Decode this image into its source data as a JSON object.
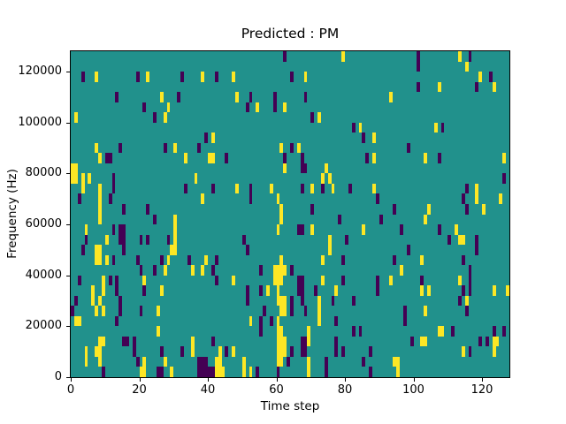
{
  "chart_data": {
    "type": "heatmap",
    "title": "Predicted : PM",
    "xlabel": "Time step",
    "ylabel": "Frequency (Hz)",
    "x_ticks": [
      0,
      20,
      40,
      60,
      80,
      100,
      120
    ],
    "y_ticks": [
      0,
      20000,
      40000,
      60000,
      80000,
      100000,
      120000
    ],
    "x_range": [
      0,
      128
    ],
    "y_range": [
      0,
      128000
    ],
    "grid_cols": 128,
    "grid_rows": 32,
    "row_height_hz": 4000,
    "legend": "none",
    "grid": "off",
    "colors": {
      "mid_background": "#21918c",
      "low": "#440154",
      "high": "#fde725",
      "spine": "#000000",
      "figure_background": "#ffffff"
    },
    "cells_low": [
      [
        62,
        31
      ],
      [
        101,
        31
      ],
      [
        116,
        31
      ],
      [
        101,
        30
      ],
      [
        3,
        29
      ],
      [
        19,
        29
      ],
      [
        32,
        29
      ],
      [
        42,
        29
      ],
      [
        64,
        29
      ],
      [
        122,
        29
      ],
      [
        101,
        28
      ],
      [
        118,
        28
      ],
      [
        13,
        27
      ],
      [
        31,
        27
      ],
      [
        52,
        27
      ],
      [
        59,
        27
      ],
      [
        68,
        27
      ],
      [
        21,
        26
      ],
      [
        51,
        26
      ],
      [
        59,
        26
      ],
      [
        24,
        25
      ],
      [
        70,
        25
      ],
      [
        39,
        23
      ],
      [
        82,
        24
      ],
      [
        108,
        24
      ],
      [
        85,
        23
      ],
      [
        14,
        22
      ],
      [
        27,
        22
      ],
      [
        37,
        22
      ],
      [
        64,
        22
      ],
      [
        98,
        22
      ],
      [
        10,
        21
      ],
      [
        11,
        21
      ],
      [
        45,
        21
      ],
      [
        62,
        21
      ],
      [
        67,
        21
      ],
      [
        86,
        21
      ],
      [
        107,
        21
      ],
      [
        67,
        20
      ],
      [
        68,
        20
      ],
      [
        12,
        19
      ],
      [
        126,
        19
      ],
      [
        12,
        18
      ],
      [
        33,
        18
      ],
      [
        41,
        18
      ],
      [
        52,
        18
      ],
      [
        67,
        18
      ],
      [
        73,
        18
      ],
      [
        81,
        18
      ],
      [
        115,
        18
      ],
      [
        2,
        17
      ],
      [
        11,
        17
      ],
      [
        52,
        17
      ],
      [
        89,
        17
      ],
      [
        114,
        17
      ],
      [
        15,
        16
      ],
      [
        22,
        16
      ],
      [
        70,
        16
      ],
      [
        94,
        16
      ],
      [
        115,
        16
      ],
      [
        24,
        15
      ],
      [
        78,
        15
      ],
      [
        90,
        15
      ],
      [
        12,
        14
      ],
      [
        14,
        14
      ],
      [
        15,
        14
      ],
      [
        66,
        14
      ],
      [
        67,
        14
      ],
      [
        96,
        14
      ],
      [
        107,
        14
      ],
      [
        4,
        13
      ],
      [
        14,
        13
      ],
      [
        15,
        13
      ],
      [
        20,
        13
      ],
      [
        22,
        13
      ],
      [
        28,
        13
      ],
      [
        50,
        13
      ],
      [
        80,
        13
      ],
      [
        110,
        13
      ],
      [
        118,
        13
      ],
      [
        3,
        12
      ],
      [
        15,
        12
      ],
      [
        51,
        12
      ],
      [
        98,
        12
      ],
      [
        118,
        12
      ],
      [
        12,
        11
      ],
      [
        19,
        11
      ],
      [
        26,
        11
      ],
      [
        34,
        11
      ],
      [
        42,
        11
      ],
      [
        79,
        11
      ],
      [
        94,
        11
      ],
      [
        114,
        11
      ],
      [
        20,
        10
      ],
      [
        24,
        10
      ],
      [
        41,
        10
      ],
      [
        55,
        10
      ],
      [
        64,
        10
      ],
      [
        116,
        10
      ],
      [
        2,
        9
      ],
      [
        11,
        9
      ],
      [
        13,
        9
      ],
      [
        42,
        9
      ],
      [
        66,
        9
      ],
      [
        67,
        9
      ],
      [
        79,
        9
      ],
      [
        89,
        9
      ],
      [
        102,
        9
      ],
      [
        116,
        9
      ],
      [
        13,
        8
      ],
      [
        21,
        8
      ],
      [
        51,
        8
      ],
      [
        55,
        8
      ],
      [
        66,
        8
      ],
      [
        67,
        8
      ],
      [
        71,
        8
      ],
      [
        89,
        8
      ],
      [
        114,
        8
      ],
      [
        116,
        8
      ],
      [
        1,
        7
      ],
      [
        14,
        7
      ],
      [
        51,
        7
      ],
      [
        64,
        7
      ],
      [
        67,
        7
      ],
      [
        76,
        7
      ],
      [
        82,
        7
      ],
      [
        113,
        7
      ],
      [
        0,
        6
      ],
      [
        14,
        6
      ],
      [
        20,
        6
      ],
      [
        56,
        6
      ],
      [
        64,
        6
      ],
      [
        68,
        6
      ],
      [
        97,
        6
      ],
      [
        115,
        6
      ],
      [
        13,
        5
      ],
      [
        55,
        5
      ],
      [
        58,
        5
      ],
      [
        77,
        5
      ],
      [
        97,
        5
      ],
      [
        55,
        4
      ],
      [
        82,
        4
      ],
      [
        84,
        4
      ],
      [
        111,
        4
      ],
      [
        123,
        4
      ],
      [
        126,
        4
      ],
      [
        15,
        3
      ],
      [
        16,
        3
      ],
      [
        18,
        3
      ],
      [
        41,
        3
      ],
      [
        67,
        3
      ],
      [
        68,
        3
      ],
      [
        77,
        3
      ],
      [
        99,
        3
      ],
      [
        119,
        3
      ],
      [
        121,
        3
      ],
      [
        18,
        2
      ],
      [
        26,
        2
      ],
      [
        32,
        2
      ],
      [
        45,
        2
      ],
      [
        64,
        2
      ],
      [
        67,
        2
      ],
      [
        68,
        2
      ],
      [
        77,
        2
      ],
      [
        79,
        2
      ],
      [
        87,
        2
      ],
      [
        116,
        2
      ],
      [
        19,
        1
      ],
      [
        37,
        1
      ],
      [
        38,
        1
      ],
      [
        39,
        1
      ],
      [
        63,
        1
      ],
      [
        74,
        1
      ],
      [
        85,
        1
      ],
      [
        9,
        0
      ],
      [
        25,
        0
      ],
      [
        26,
        0
      ],
      [
        37,
        0
      ],
      [
        38,
        0
      ],
      [
        39,
        0
      ],
      [
        40,
        0
      ],
      [
        41,
        0
      ],
      [
        54,
        0
      ],
      [
        60,
        0
      ],
      [
        74,
        0
      ],
      [
        87,
        0
      ]
    ],
    "cells_high": [
      [
        79,
        31
      ],
      [
        113,
        31
      ],
      [
        115,
        30
      ],
      [
        7,
        29
      ],
      [
        22,
        29
      ],
      [
        38,
        29
      ],
      [
        47,
        29
      ],
      [
        68,
        29
      ],
      [
        119,
        29
      ],
      [
        107,
        28
      ],
      [
        123,
        28
      ],
      [
        26,
        27
      ],
      [
        48,
        27
      ],
      [
        93,
        27
      ],
      [
        28,
        26
      ],
      [
        54,
        26
      ],
      [
        62,
        26
      ],
      [
        1,
        25
      ],
      [
        27,
        25
      ],
      [
        72,
        25
      ],
      [
        84,
        24
      ],
      [
        106,
        24
      ],
      [
        41,
        23
      ],
      [
        88,
        23
      ],
      [
        7,
        22
      ],
      [
        30,
        22
      ],
      [
        61,
        22
      ],
      [
        66,
        22
      ],
      [
        8,
        21
      ],
      [
        33,
        21
      ],
      [
        40,
        21
      ],
      [
        41,
        21
      ],
      [
        88,
        21
      ],
      [
        103,
        21
      ],
      [
        126,
        21
      ],
      [
        0,
        20
      ],
      [
        1,
        20
      ],
      [
        62,
        20
      ],
      [
        74,
        20
      ],
      [
        0,
        19
      ],
      [
        1,
        19
      ],
      [
        3,
        19
      ],
      [
        5,
        19
      ],
      [
        36,
        19
      ],
      [
        73,
        19
      ],
      [
        75,
        19
      ],
      [
        3,
        18
      ],
      [
        8,
        18
      ],
      [
        48,
        18
      ],
      [
        58,
        18
      ],
      [
        70,
        18
      ],
      [
        76,
        18
      ],
      [
        88,
        18
      ],
      [
        118,
        18
      ],
      [
        8,
        17
      ],
      [
        38,
        17
      ],
      [
        60,
        17
      ],
      [
        118,
        17
      ],
      [
        125,
        17
      ],
      [
        8,
        16
      ],
      [
        61,
        16
      ],
      [
        104,
        16
      ],
      [
        120,
        16
      ],
      [
        8,
        15
      ],
      [
        30,
        15
      ],
      [
        61,
        15
      ],
      [
        103,
        15
      ],
      [
        4,
        14
      ],
      [
        30,
        14
      ],
      [
        60,
        14
      ],
      [
        70,
        14
      ],
      [
        85,
        14
      ],
      [
        112,
        14
      ],
      [
        10,
        13
      ],
      [
        30,
        13
      ],
      [
        75,
        13
      ],
      [
        113,
        13
      ],
      [
        114,
        13
      ],
      [
        7,
        12
      ],
      [
        8,
        12
      ],
      [
        29,
        12
      ],
      [
        30,
        12
      ],
      [
        75,
        12
      ],
      [
        7,
        11
      ],
      [
        8,
        11
      ],
      [
        10,
        11
      ],
      [
        28,
        11
      ],
      [
        39,
        11
      ],
      [
        61,
        11
      ],
      [
        73,
        11
      ],
      [
        102,
        11
      ],
      [
        27,
        10
      ],
      [
        35,
        10
      ],
      [
        38,
        10
      ],
      [
        59,
        10
      ],
      [
        60,
        10
      ],
      [
        61,
        10
      ],
      [
        62,
        10
      ],
      [
        96,
        10
      ],
      [
        9,
        9
      ],
      [
        21,
        9
      ],
      [
        47,
        9
      ],
      [
        59,
        9
      ],
      [
        60,
        9
      ],
      [
        61,
        9
      ],
      [
        73,
        9
      ],
      [
        93,
        9
      ],
      [
        113,
        9
      ],
      [
        6,
        8
      ],
      [
        9,
        8
      ],
      [
        26,
        8
      ],
      [
        57,
        8
      ],
      [
        60,
        8
      ],
      [
        77,
        8
      ],
      [
        102,
        8
      ],
      [
        104,
        8
      ],
      [
        123,
        8
      ],
      [
        127,
        8
      ],
      [
        6,
        7
      ],
      [
        8,
        7
      ],
      [
        60,
        7
      ],
      [
        61,
        7
      ],
      [
        62,
        7
      ],
      [
        72,
        7
      ],
      [
        115,
        7
      ],
      [
        7,
        6
      ],
      [
        9,
        6
      ],
      [
        25,
        6
      ],
      [
        61,
        6
      ],
      [
        62,
        6
      ],
      [
        72,
        6
      ],
      [
        103,
        6
      ],
      [
        1,
        5
      ],
      [
        2,
        5
      ],
      [
        52,
        5
      ],
      [
        60,
        5
      ],
      [
        72,
        5
      ],
      [
        25,
        4
      ],
      [
        60,
        4
      ],
      [
        61,
        4
      ],
      [
        69,
        4
      ],
      [
        107,
        4
      ],
      [
        108,
        4
      ],
      [
        8,
        3
      ],
      [
        9,
        3
      ],
      [
        35,
        3
      ],
      [
        60,
        3
      ],
      [
        61,
        3
      ],
      [
        62,
        3
      ],
      [
        69,
        3
      ],
      [
        102,
        3
      ],
      [
        103,
        3
      ],
      [
        123,
        3
      ],
      [
        124,
        3
      ],
      [
        4,
        2
      ],
      [
        7,
        2
      ],
      [
        8,
        2
      ],
      [
        35,
        2
      ],
      [
        43,
        2
      ],
      [
        47,
        2
      ],
      [
        60,
        2
      ],
      [
        61,
        2
      ],
      [
        62,
        2
      ],
      [
        114,
        2
      ],
      [
        123,
        2
      ],
      [
        4,
        1
      ],
      [
        8,
        1
      ],
      [
        21,
        1
      ],
      [
        27,
        1
      ],
      [
        42,
        1
      ],
      [
        43,
        1
      ],
      [
        50,
        1
      ],
      [
        60,
        1
      ],
      [
        61,
        1
      ],
      [
        69,
        1
      ],
      [
        94,
        1
      ],
      [
        95,
        1
      ],
      [
        20,
        0
      ],
      [
        21,
        0
      ],
      [
        29,
        0
      ],
      [
        42,
        0
      ],
      [
        43,
        0
      ],
      [
        44,
        0
      ],
      [
        50,
        0
      ],
      [
        52,
        0
      ],
      [
        69,
        0
      ],
      [
        95,
        0
      ]
    ]
  }
}
